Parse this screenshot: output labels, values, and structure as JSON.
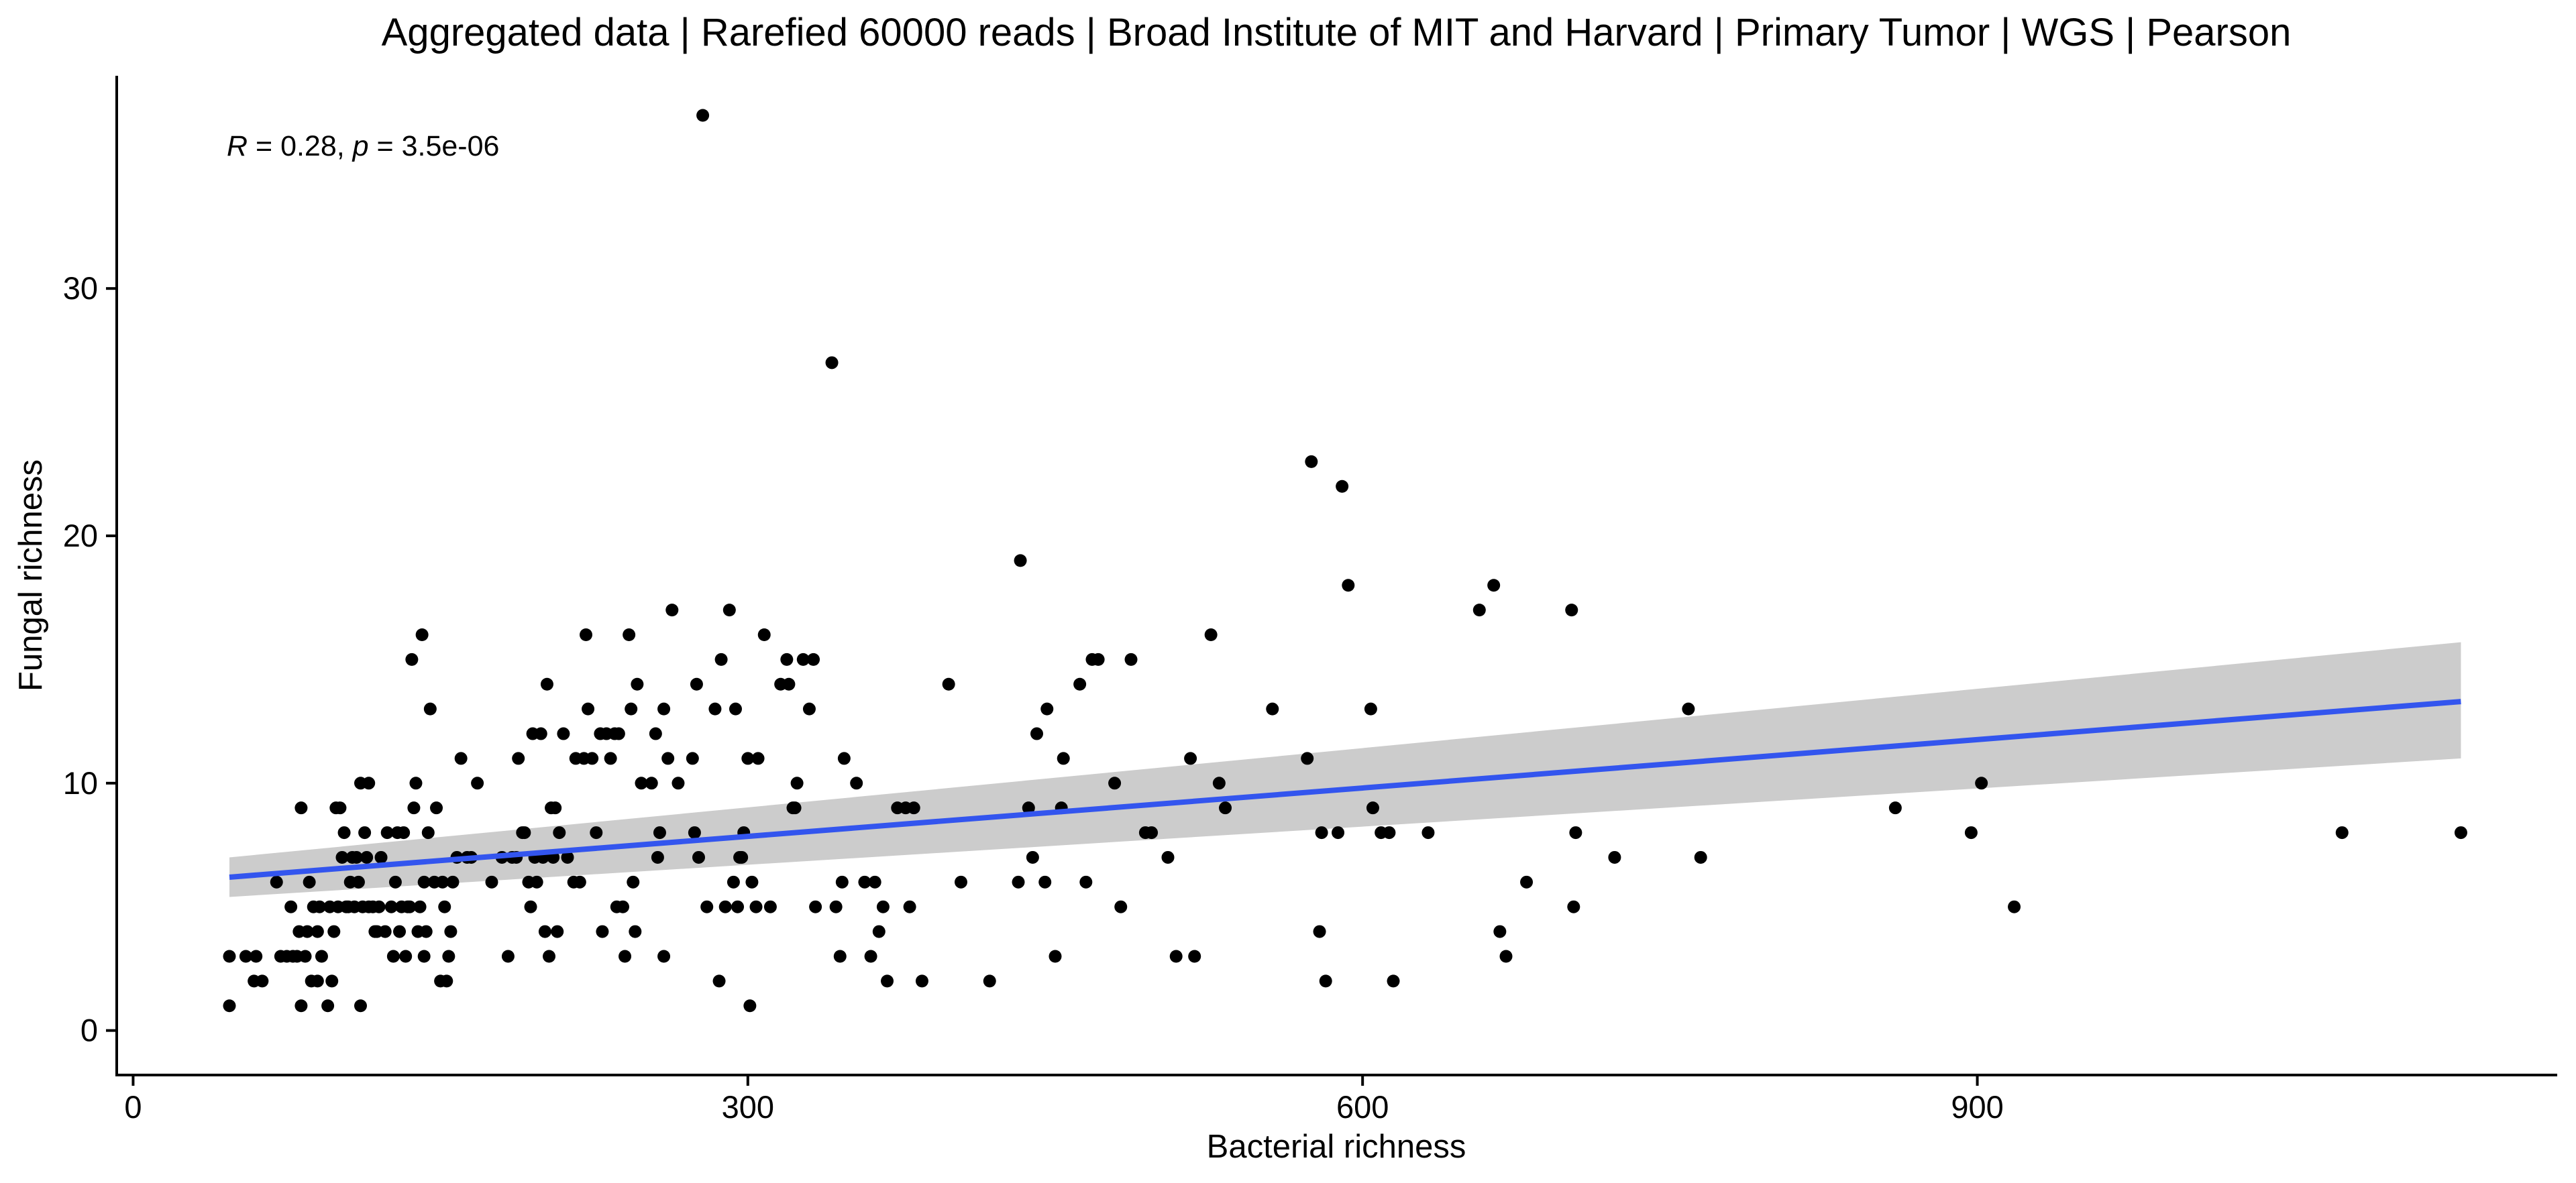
{
  "chart_data": {
    "type": "scatter",
    "title": "Aggregated data | Rarefied 60000 reads | Broad Institute of MIT and Harvard | Primary Tumor | WGS | Pearson",
    "xlabel": "Bacterial richness",
    "ylabel": "Fungal richness",
    "xlim": [
      -8,
      1183
    ],
    "ylim": [
      -1.8,
      38.6
    ],
    "xticks": [
      0,
      300,
      600,
      900
    ],
    "yticks": [
      0,
      10,
      20,
      30
    ],
    "grid": false,
    "legend": "none",
    "annotation": {
      "r_symbol": "R",
      "r_value": " = 0.28, ",
      "p_symbol": "p",
      "p_value": " = 3.5e-06"
    },
    "colors": {
      "points": "#000000",
      "fit_line": "#3355ee",
      "confidence_band": "#cccccc"
    },
    "regression": {
      "x": [
        47,
        1136
      ],
      "y": [
        6.2,
        13.3
      ],
      "ci_lower": [
        5.4,
        11.0
      ],
      "ci_upper": [
        7.0,
        15.7
      ]
    },
    "points": [
      [
        47,
        1
      ],
      [
        47,
        3
      ],
      [
        55,
        3
      ],
      [
        60,
        3
      ],
      [
        59,
        2
      ],
      [
        63,
        2
      ],
      [
        70,
        6
      ],
      [
        72,
        3
      ],
      [
        75,
        3
      ],
      [
        77,
        5
      ],
      [
        78,
        3
      ],
      [
        80,
        3
      ],
      [
        81,
        4
      ],
      [
        82,
        1
      ],
      [
        82,
        9
      ],
      [
        84,
        3
      ],
      [
        85,
        4
      ],
      [
        86,
        6
      ],
      [
        87,
        2
      ],
      [
        88,
        5
      ],
      [
        90,
        2
      ],
      [
        90,
        4
      ],
      [
        91,
        5
      ],
      [
        92,
        3
      ],
      [
        95,
        1
      ],
      [
        96,
        5
      ],
      [
        97,
        2
      ],
      [
        98,
        4
      ],
      [
        99,
        9
      ],
      [
        100,
        5
      ],
      [
        101,
        9
      ],
      [
        102,
        7
      ],
      [
        103,
        8
      ],
      [
        104,
        5
      ],
      [
        105,
        5
      ],
      [
        106,
        6
      ],
      [
        107,
        7
      ],
      [
        108,
        5
      ],
      [
        109,
        7
      ],
      [
        110,
        6
      ],
      [
        111,
        10
      ],
      [
        111,
        1
      ],
      [
        112,
        5
      ],
      [
        113,
        8
      ],
      [
        114,
        7
      ],
      [
        115,
        10
      ],
      [
        115,
        5
      ],
      [
        117,
        5
      ],
      [
        118,
        4
      ],
      [
        119,
        4
      ],
      [
        120,
        5
      ],
      [
        121,
        7
      ],
      [
        123,
        4
      ],
      [
        124,
        8
      ],
      [
        126,
        5
      ],
      [
        127,
        3
      ],
      [
        128,
        6
      ],
      [
        129,
        8
      ],
      [
        130,
        4
      ],
      [
        131,
        5
      ],
      [
        132,
        8
      ],
      [
        133,
        3
      ],
      [
        134,
        5
      ],
      [
        135,
        5
      ],
      [
        136,
        15
      ],
      [
        137,
        9
      ],
      [
        138,
        10
      ],
      [
        139,
        4
      ],
      [
        140,
        5
      ],
      [
        141,
        16
      ],
      [
        142,
        3
      ],
      [
        142,
        6
      ],
      [
        143,
        4
      ],
      [
        144,
        8
      ],
      [
        145,
        13
      ],
      [
        147,
        6
      ],
      [
        148,
        9
      ],
      [
        150,
        2
      ],
      [
        151,
        6
      ],
      [
        152,
        5
      ],
      [
        153,
        2
      ],
      [
        154,
        3
      ],
      [
        155,
        4
      ],
      [
        156,
        6
      ],
      [
        158,
        7
      ],
      [
        160,
        11
      ],
      [
        163,
        7
      ],
      [
        165,
        7
      ],
      [
        168,
        10
      ],
      [
        175,
        6
      ],
      [
        180,
        7
      ],
      [
        183,
        3
      ],
      [
        185,
        7
      ],
      [
        187,
        7
      ],
      [
        188,
        11
      ],
      [
        190,
        8
      ],
      [
        191,
        8
      ],
      [
        193,
        6
      ],
      [
        194,
        5
      ],
      [
        195,
        12
      ],
      [
        196,
        7
      ],
      [
        197,
        6
      ],
      [
        199,
        12
      ],
      [
        200,
        7
      ],
      [
        201,
        4
      ],
      [
        202,
        14
      ],
      [
        203,
        3
      ],
      [
        204,
        9
      ],
      [
        205,
        7
      ],
      [
        206,
        9
      ],
      [
        207,
        4
      ],
      [
        208,
        8
      ],
      [
        210,
        12
      ],
      [
        212,
        7
      ],
      [
        215,
        6
      ],
      [
        216,
        11
      ],
      [
        218,
        6
      ],
      [
        220,
        11
      ],
      [
        221,
        16
      ],
      [
        222,
        13
      ],
      [
        224,
        11
      ],
      [
        226,
        8
      ],
      [
        228,
        12
      ],
      [
        229,
        4
      ],
      [
        231,
        12
      ],
      [
        233,
        11
      ],
      [
        235,
        12
      ],
      [
        236,
        5
      ],
      [
        237,
        12
      ],
      [
        239,
        5
      ],
      [
        240,
        3
      ],
      [
        242,
        16
      ],
      [
        243,
        13
      ],
      [
        244,
        6
      ],
      [
        245,
        4
      ],
      [
        246,
        14
      ],
      [
        248,
        10
      ],
      [
        253,
        10
      ],
      [
        255,
        12
      ],
      [
        256,
        7
      ],
      [
        257,
        8
      ],
      [
        259,
        3
      ],
      [
        259,
        13
      ],
      [
        261,
        11
      ],
      [
        263,
        17
      ],
      [
        266,
        10
      ],
      [
        273,
        11
      ],
      [
        274,
        8
      ],
      [
        275,
        14
      ],
      [
        276,
        7
      ],
      [
        278,
        37
      ],
      [
        280,
        5
      ],
      [
        284,
        13
      ],
      [
        286,
        2
      ],
      [
        287,
        15
      ],
      [
        289,
        5
      ],
      [
        291,
        17
      ],
      [
        293,
        6
      ],
      [
        294,
        13
      ],
      [
        295,
        5
      ],
      [
        296,
        7
      ],
      [
        297,
        7
      ],
      [
        298,
        8
      ],
      [
        300,
        11
      ],
      [
        301,
        1
      ],
      [
        302,
        6
      ],
      [
        304,
        5
      ],
      [
        305,
        11
      ],
      [
        308,
        16
      ],
      [
        311,
        5
      ],
      [
        316,
        14
      ],
      [
        319,
        15
      ],
      [
        320,
        14
      ],
      [
        322,
        9
      ],
      [
        323,
        9
      ],
      [
        324,
        10
      ],
      [
        327,
        15
      ],
      [
        330,
        13
      ],
      [
        332,
        15
      ],
      [
        333,
        5
      ],
      [
        341,
        27
      ],
      [
        343,
        5
      ],
      [
        345,
        3
      ],
      [
        346,
        6
      ],
      [
        347,
        11
      ],
      [
        353,
        10
      ],
      [
        357,
        6
      ],
      [
        360,
        3
      ],
      [
        362,
        6
      ],
      [
        364,
        4
      ],
      [
        366,
        5
      ],
      [
        368,
        2
      ],
      [
        373,
        9
      ],
      [
        377,
        9
      ],
      [
        379,
        5
      ],
      [
        381,
        9
      ],
      [
        385,
        2
      ],
      [
        398,
        14
      ],
      [
        404,
        6
      ],
      [
        418,
        2
      ],
      [
        432,
        6
      ],
      [
        433,
        19
      ],
      [
        437,
        9
      ],
      [
        439,
        7
      ],
      [
        441,
        12
      ],
      [
        445,
        6
      ],
      [
        446,
        13
      ],
      [
        450,
        3
      ],
      [
        453,
        9
      ],
      [
        454,
        11
      ],
      [
        462,
        14
      ],
      [
        465,
        6
      ],
      [
        468,
        15
      ],
      [
        471,
        15
      ],
      [
        479,
        10
      ],
      [
        482,
        5
      ],
      [
        487,
        15
      ],
      [
        494,
        8
      ],
      [
        497,
        8
      ],
      [
        505,
        7
      ],
      [
        509,
        3
      ],
      [
        516,
        11
      ],
      [
        518,
        3
      ],
      [
        526,
        16
      ],
      [
        530,
        10
      ],
      [
        533,
        9
      ],
      [
        556,
        13
      ],
      [
        573,
        11
      ],
      [
        575,
        23
      ],
      [
        579,
        4
      ],
      [
        580,
        8
      ],
      [
        582,
        2
      ],
      [
        588,
        8
      ],
      [
        590,
        22
      ],
      [
        593,
        18
      ],
      [
        604,
        13
      ],
      [
        605,
        9
      ],
      [
        609,
        8
      ],
      [
        613,
        8
      ],
      [
        615,
        2
      ],
      [
        632,
        8
      ],
      [
        657,
        17
      ],
      [
        664,
        18
      ],
      [
        667,
        4
      ],
      [
        670,
        3
      ],
      [
        680,
        6
      ],
      [
        702,
        17
      ],
      [
        703,
        5
      ],
      [
        704,
        8
      ],
      [
        723,
        7
      ],
      [
        759,
        13
      ],
      [
        765,
        7
      ],
      [
        860,
        9
      ],
      [
        897,
        8
      ],
      [
        902,
        10
      ],
      [
        918,
        5
      ],
      [
        1078,
        8
      ],
      [
        1136,
        8
      ]
    ]
  }
}
